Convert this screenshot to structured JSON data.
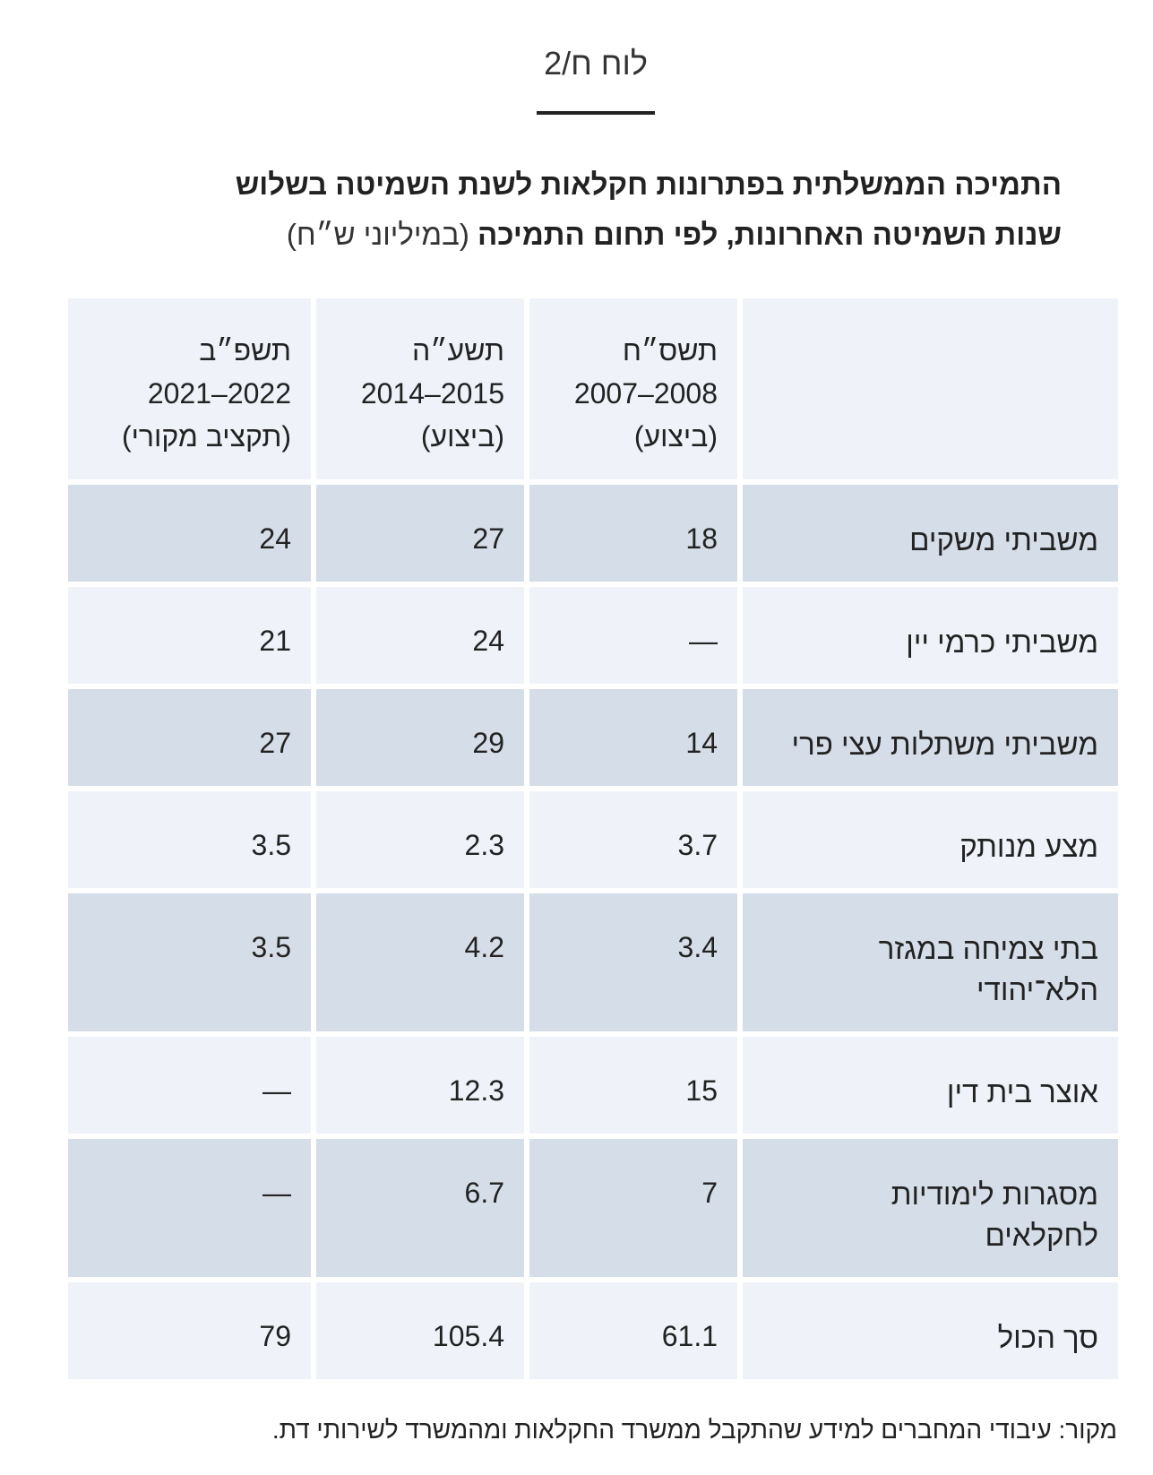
{
  "caption": "לוח ח/2",
  "title": {
    "line1": "התמיכה הממשלתית בפתרונות חקלאות לשנת השמיטה בשלוש",
    "line2_bold": "שנות השמיטה האחרונות, לפי תחום התמיכה",
    "line2_unit": "(במיליוני ש״ח)"
  },
  "table": {
    "columns": [
      {
        "year": "תשס״ח",
        "range": "2008–2007",
        "note": "(ביצוע)"
      },
      {
        "year": "תשע״ה",
        "range": "2015–2014",
        "note": "(ביצוע)"
      },
      {
        "year": "תשפ״ב",
        "range": "2022–2021",
        "note": "(תקציב מקורי)"
      }
    ],
    "rows": [
      {
        "label": "משביתי משקים",
        "v1": "18",
        "v2": "27",
        "v3": "24"
      },
      {
        "label": "משביתי כרמי יין",
        "v1": "—",
        "v2": "24",
        "v3": "21"
      },
      {
        "label": "משביתי משתלות עצי פרי",
        "v1": "14",
        "v2": "29",
        "v3": "27"
      },
      {
        "label": "מצע מנותק",
        "v1": "3.7",
        "v2": "2.3",
        "v3": "3.5"
      },
      {
        "label": "בתי צמיחה במגזר הלא־יהודי",
        "v1": "3.4",
        "v2": "4.2",
        "v3": "3.5"
      },
      {
        "label": "אוצר בית דין",
        "v1": "15",
        "v2": "12.3",
        "v3": "—"
      },
      {
        "label": "מסגרות לימודיות לחקלאים",
        "v1": "7",
        "v2": "6.7",
        "v3": "—"
      },
      {
        "label": "סך הכול",
        "v1": "61.1",
        "v2": "105.4",
        "v3": "79"
      }
    ]
  },
  "source": "מקור: עיבודי המחברים למידע שהתקבל ממשרד החקלאות ומהמשרד לשירותי דת.",
  "colors": {
    "row_light": "#eff3f9",
    "row_dark": "#d5dde9",
    "text": "#222222"
  }
}
